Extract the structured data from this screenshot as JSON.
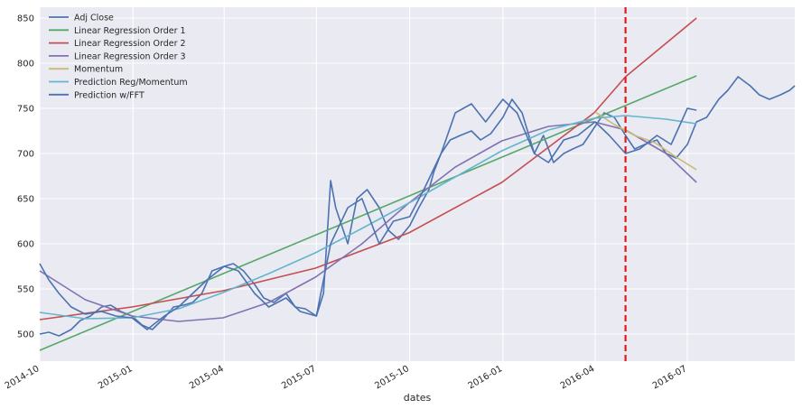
{
  "chart_data": {
    "type": "line",
    "title": "",
    "xlabel": "dates",
    "ylabel": "",
    "xlim": [
      "2014-10-01",
      "2016-10-15"
    ],
    "ylim": [
      470,
      862
    ],
    "grid": true,
    "legend_position": "top-left",
    "x_tick_labels": [
      "2014-10",
      "2015-01",
      "2015-04",
      "2015-07",
      "2015-10",
      "2016-01",
      "2016-04",
      "2016-07"
    ],
    "x_ticks": [
      "2014-10-01",
      "2015-01-01",
      "2015-04-01",
      "2015-07-01",
      "2015-10-01",
      "2016-01-01",
      "2016-04-01",
      "2016-07-01"
    ],
    "y_ticks": [
      500,
      550,
      600,
      650,
      700,
      750,
      800,
      850
    ],
    "vertical_marker": {
      "x": "2016-05-01",
      "color": "#e31a1c",
      "style": "dashed"
    },
    "series": [
      {
        "name": "Adj Close",
        "color": "#4c72b0",
        "x": [
          "2014-10-01",
          "2014-10-10",
          "2014-10-20",
          "2014-11-01",
          "2014-11-10",
          "2014-11-20",
          "2014-12-01",
          "2014-12-10",
          "2014-12-20",
          "2014-12-31",
          "2015-01-10",
          "2015-01-20",
          "2015-02-01",
          "2015-02-10",
          "2015-02-20",
          "2015-03-01",
          "2015-03-10",
          "2015-03-20",
          "2015-04-01",
          "2015-04-10",
          "2015-04-20",
          "2015-05-01",
          "2015-05-10",
          "2015-05-20",
          "2015-06-01",
          "2015-06-10",
          "2015-06-20",
          "2015-07-01",
          "2015-07-08",
          "2015-07-15",
          "2015-07-20",
          "2015-08-01",
          "2015-08-10",
          "2015-08-20",
          "2015-09-01",
          "2015-09-10",
          "2015-09-20",
          "2015-10-01",
          "2015-10-10",
          "2015-10-20",
          "2015-10-25",
          "2015-11-01",
          "2015-11-10",
          "2015-11-20",
          "2015-12-01",
          "2015-12-10",
          "2015-12-20",
          "2016-01-01",
          "2016-01-10",
          "2016-01-20",
          "2016-02-01",
          "2016-02-10",
          "2016-02-20",
          "2016-03-01",
          "2016-03-10",
          "2016-03-20",
          "2016-04-01",
          "2016-04-10",
          "2016-04-20",
          "2016-05-01",
          "2016-05-10",
          "2016-05-20",
          "2016-06-01",
          "2016-06-10",
          "2016-06-20",
          "2016-07-01",
          "2016-07-10",
          "2016-07-20",
          "2016-08-01",
          "2016-08-10",
          "2016-08-20",
          "2016-09-01",
          "2016-09-10",
          "2016-09-20",
          "2016-10-01",
          "2016-10-10",
          "2016-10-15"
        ],
        "y": [
          500,
          502,
          498,
          505,
          515,
          520,
          530,
          532,
          525,
          520,
          510,
          505,
          518,
          530,
          532,
          535,
          545,
          570,
          575,
          578,
          570,
          555,
          540,
          535,
          545,
          530,
          528,
          520,
          545,
          670,
          640,
          600,
          650,
          660,
          640,
          615,
          605,
          620,
          640,
          660,
          680,
          700,
          715,
          720,
          725,
          715,
          722,
          740,
          760,
          745,
          700,
          720,
          690,
          700,
          705,
          710,
          730,
          745,
          740,
          720,
          705,
          710,
          715,
          700,
          695,
          710,
          735,
          740,
          760,
          770,
          785,
          775,
          765,
          760,
          765,
          770,
          775
        ]
      },
      {
        "name": "Linear Regression Order 1",
        "color": "#55a868",
        "x": [
          "2014-10-01",
          "2016-07-10"
        ],
        "y": [
          482,
          786
        ]
      },
      {
        "name": "Linear Regression Order 2",
        "color": "#c44e52",
        "x": [
          "2014-10-01",
          "2014-12-31",
          "2015-03-31",
          "2015-06-30",
          "2015-09-30",
          "2015-12-31",
          "2016-03-31",
          "2016-05-01",
          "2016-07-10"
        ],
        "y": [
          516,
          530,
          548,
          573,
          612,
          668,
          745,
          785,
          850
        ]
      },
      {
        "name": "Linear Regression Order 3",
        "color": "#8172b2",
        "x": [
          "2014-10-01",
          "2014-11-15",
          "2014-12-31",
          "2015-02-15",
          "2015-03-31",
          "2015-05-15",
          "2015-06-30",
          "2015-08-15",
          "2015-09-30",
          "2015-11-15",
          "2015-12-31",
          "2016-02-15",
          "2016-03-31",
          "2016-05-01",
          "2016-06-10",
          "2016-07-10"
        ],
        "y": [
          570,
          538,
          520,
          514,
          518,
          535,
          563,
          600,
          645,
          685,
          714,
          730,
          735,
          726,
          700,
          668
        ]
      },
      {
        "name": "Momentum",
        "color": "#ccb974",
        "x": [
          "2016-04-01",
          "2016-04-20",
          "2016-05-10",
          "2016-05-30",
          "2016-06-20",
          "2016-07-10"
        ],
        "y": [
          746,
          732,
          720,
          712,
          696,
          682
        ]
      },
      {
        "name": "Prediction Reg/Momentum",
        "color": "#64b5cd",
        "x": [
          "2014-10-01",
          "2014-11-15",
          "2014-12-31",
          "2015-02-15",
          "2015-03-31",
          "2015-05-15",
          "2015-06-30",
          "2015-08-15",
          "2015-09-30",
          "2015-11-15",
          "2015-12-31",
          "2016-02-15",
          "2016-03-31",
          "2016-05-01",
          "2016-06-10",
          "2016-07-10"
        ],
        "y": [
          524,
          517,
          518,
          528,
          546,
          567,
          590,
          617,
          645,
          674,
          703,
          726,
          739,
          742,
          738,
          733
        ]
      },
      {
        "name": "Prediction w/FFT",
        "color": "#4c72b0",
        "x": [
          "2014-10-01",
          "2014-10-10",
          "2014-10-20",
          "2014-11-01",
          "2014-11-15",
          "2014-12-01",
          "2014-12-15",
          "2014-12-31",
          "2015-01-15",
          "2015-02-01",
          "2015-02-15",
          "2015-03-01",
          "2015-03-15",
          "2015-04-01",
          "2015-04-15",
          "2015-05-01",
          "2015-05-15",
          "2015-06-01",
          "2015-06-15",
          "2015-07-01",
          "2015-07-15",
          "2015-08-01",
          "2015-08-15",
          "2015-09-01",
          "2015-09-15",
          "2015-10-01",
          "2015-10-15",
          "2015-11-01",
          "2015-11-15",
          "2015-12-01",
          "2015-12-15",
          "2016-01-01",
          "2016-01-15",
          "2016-02-01",
          "2016-02-15",
          "2016-03-01",
          "2016-03-15",
          "2016-04-01",
          "2016-04-15",
          "2016-05-01",
          "2016-05-15",
          "2016-06-01",
          "2016-06-15",
          "2016-07-01",
          "2016-07-10"
        ],
        "y": [
          578,
          560,
          545,
          530,
          522,
          525,
          520,
          518,
          505,
          520,
          530,
          545,
          560,
          575,
          570,
          545,
          530,
          540,
          525,
          520,
          600,
          640,
          650,
          600,
          625,
          630,
          660,
          700,
          745,
          755,
          735,
          760,
          745,
          700,
          690,
          715,
          720,
          735,
          720,
          700,
          705,
          720,
          710,
          750,
          748
        ]
      }
    ]
  }
}
